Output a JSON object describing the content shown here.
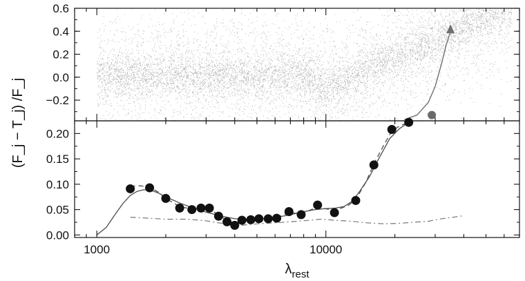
{
  "chart_data": [
    {
      "type": "scatter",
      "panel": "top",
      "xscale": "log",
      "xlim": [
        800,
        70000
      ],
      "ylim": [
        -0.38,
        0.6
      ],
      "yticks": [
        -0.2,
        0.0,
        0.2,
        0.4,
        0.6
      ],
      "ytick_labels": [
        "−0.2",
        "0.0",
        "0.2",
        "0.4",
        "0.6"
      ],
      "description_series": [
        {
          "name": "",
          "style": "gray points",
          "x": [],
          "y": []
        }
      ],
      "curve": {
        "x": [
          22000,
          25000,
          28000,
          30000,
          32000,
          33500,
          35000
        ],
        "y": [
          -0.37,
          -0.33,
          -0.22,
          -0.08,
          0.12,
          0.28,
          0.4
        ]
      },
      "gray_point": {
        "x": 29000,
        "y": -0.33
      },
      "grid": false
    },
    {
      "type": "line",
      "panel": "bottom",
      "xscale": "log",
      "xlim": [
        800,
        70000
      ],
      "ylim": [
        -0.005,
        0.225
      ],
      "xticks": [
        1000,
        10000
      ],
      "xtick_labels": [
        "1000",
        "10000"
      ],
      "yticks": [
        0.0,
        0.05,
        0.1,
        0.15,
        0.2
      ],
      "ytick_labels": [
        "0.00",
        "0.05",
        "0.10",
        "0.15",
        "0.20"
      ],
      "xlabel": "λ",
      "xlabel_sub": "rest",
      "ylabel": "(F_j − T_j) /F_j",
      "series": [
        {
          "name": "",
          "style": "black circles",
          "x": [
            1400,
            1700,
            2000,
            2300,
            2600,
            2850,
            3100,
            3400,
            3700,
            4000,
            4300,
            4700,
            5100,
            5600,
            6100,
            6900,
            7800,
            9200,
            10900,
            13500,
            16200,
            19400,
            23000
          ],
          "y": [
            0.091,
            0.093,
            0.072,
            0.053,
            0.05,
            0.053,
            0.053,
            0.037,
            0.026,
            0.019,
            0.029,
            0.03,
            0.032,
            0.032,
            0.033,
            0.046,
            0.04,
            0.059,
            0.044,
            0.068,
            0.138,
            0.208,
            0.222
          ]
        },
        {
          "name": "",
          "style": "solid gray curve",
          "x": [
            1000,
            1100,
            1200,
            1300,
            1400,
            1500,
            1600,
            1700,
            1850,
            2000,
            2300,
            2600,
            3000,
            3500,
            4000,
            4500,
            5000,
            6000,
            7000,
            8000,
            9000,
            10000,
            11000,
            12000,
            13000,
            14000,
            15500,
            17000,
            19000,
            21000,
            23000
          ],
          "y": [
            0.0,
            0.015,
            0.04,
            0.062,
            0.078,
            0.086,
            0.089,
            0.089,
            0.083,
            0.075,
            0.063,
            0.054,
            0.045,
            0.037,
            0.032,
            0.031,
            0.031,
            0.034,
            0.04,
            0.046,
            0.05,
            0.052,
            0.053,
            0.056,
            0.066,
            0.085,
            0.115,
            0.15,
            0.19,
            0.21,
            0.222
          ]
        },
        {
          "name": "",
          "style": "dashed gray curve",
          "x": [
            1400,
            1550,
            1700,
            1850,
            2000,
            2300,
            2600,
            2850,
            3100,
            3400,
            3700,
            4000,
            4300,
            4700,
            5100,
            5600,
            6100,
            6900,
            7800,
            9200,
            10900,
            12500,
            13500,
            15000,
            16200,
            17800,
            19400,
            21000,
            23000
          ],
          "y": [
            0.096,
            0.097,
            0.094,
            0.085,
            0.072,
            0.056,
            0.051,
            0.052,
            0.052,
            0.039,
            0.029,
            0.023,
            0.028,
            0.03,
            0.032,
            0.032,
            0.034,
            0.044,
            0.042,
            0.055,
            0.048,
            0.058,
            0.07,
            0.105,
            0.14,
            0.175,
            0.205,
            0.215,
            0.222
          ]
        },
        {
          "name": "",
          "style": "dash-dot gray curve",
          "x": [
            1400,
            1700,
            2000,
            2500,
            3000,
            3500,
            4000,
            4500,
            5000,
            6000,
            7000,
            8000,
            9500,
            11000,
            13000,
            15000,
            18000,
            21000,
            24000,
            28000,
            32000,
            36000,
            40000
          ],
          "y": [
            0.035,
            0.033,
            0.031,
            0.031,
            0.028,
            0.023,
            0.018,
            0.02,
            0.022,
            0.024,
            0.026,
            0.028,
            0.031,
            0.029,
            0.027,
            0.024,
            0.022,
            0.023,
            0.025,
            0.027,
            0.032,
            0.035,
            0.038
          ]
        }
      ],
      "grid": false
    }
  ]
}
